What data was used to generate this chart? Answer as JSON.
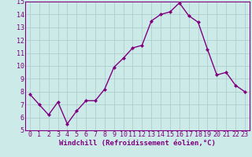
{
  "x": [
    0,
    1,
    2,
    3,
    4,
    5,
    6,
    7,
    8,
    9,
    10,
    11,
    12,
    13,
    14,
    15,
    16,
    17,
    18,
    19,
    20,
    21,
    22,
    23
  ],
  "y": [
    7.8,
    7.0,
    6.2,
    7.2,
    5.5,
    6.5,
    7.3,
    7.3,
    8.2,
    9.9,
    10.6,
    11.4,
    11.6,
    13.5,
    14.0,
    14.2,
    14.9,
    13.9,
    13.4,
    11.3,
    9.3,
    9.5,
    8.5,
    8.0
  ],
  "line_color": "#800080",
  "marker": "D",
  "marker_size": 2.0,
  "linewidth": 1.0,
  "bg_color": "#cceae8",
  "grid_color": "#b0cece",
  "xlabel": "Windchill (Refroidissement éolien,°C)",
  "xlabel_fontsize": 6.5,
  "tick_fontsize": 6.0,
  "ylim": [
    5,
    15
  ],
  "xlim": [
    -0.5,
    23.5
  ],
  "yticks": [
    5,
    6,
    7,
    8,
    9,
    10,
    11,
    12,
    13,
    14,
    15
  ],
  "xticks": [
    0,
    1,
    2,
    3,
    4,
    5,
    6,
    7,
    8,
    9,
    10,
    11,
    12,
    13,
    14,
    15,
    16,
    17,
    18,
    19,
    20,
    21,
    22,
    23
  ]
}
